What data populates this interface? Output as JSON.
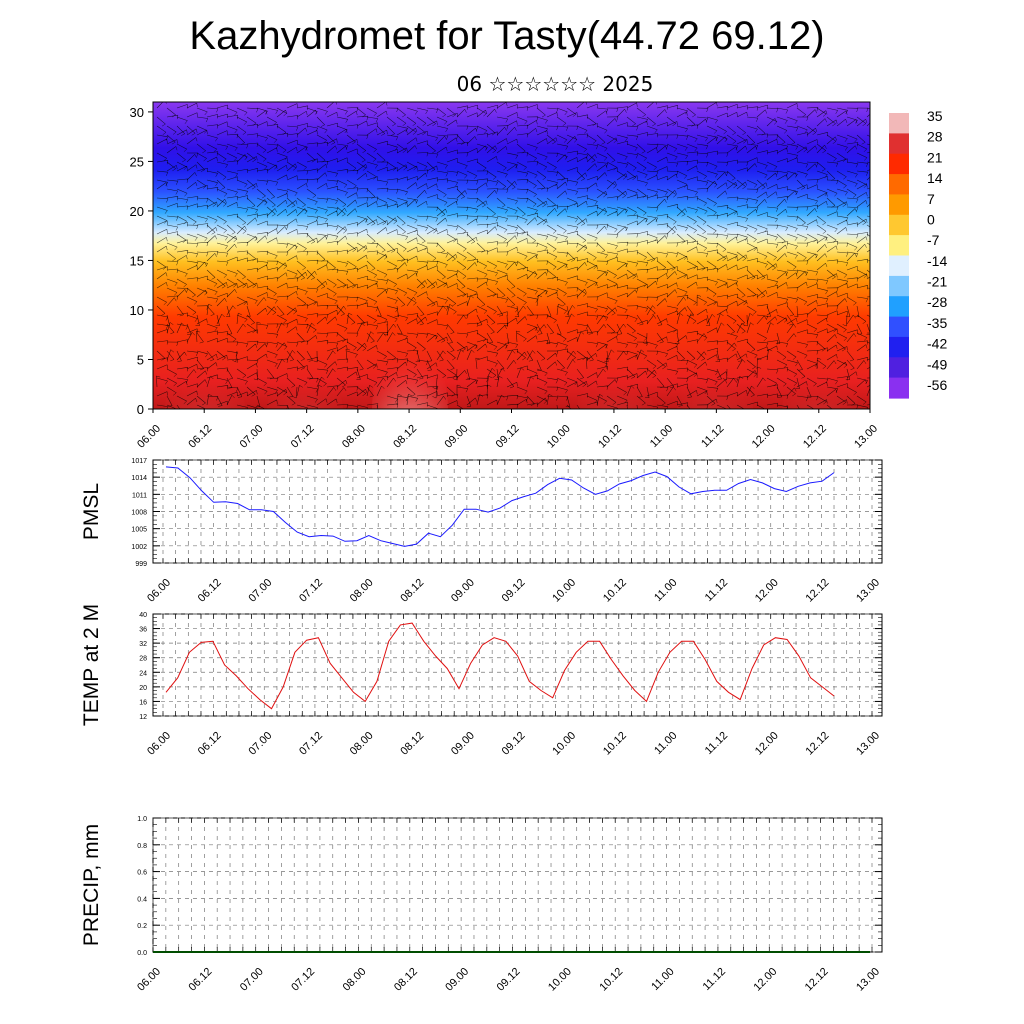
{
  "header": {
    "title": "Kazhydromet for Tasty(44.72 69.12)",
    "subtitle": "06 ☆☆☆☆☆☆ 2025"
  },
  "colors": {
    "pmsl_line": "#1a1aff",
    "temp_line": "#e01010",
    "precip_line": "#004d00",
    "grid": "#777777",
    "colorbar": [
      "#f2b8b8",
      "#e03030",
      "#ff2a00",
      "#ff6a00",
      "#ff9a00",
      "#ffc830",
      "#fff080",
      "#e0f0ff",
      "#7fc8ff",
      "#20a0ff",
      "#3050ff",
      "#2020f0",
      "#5020e0",
      "#8a30f0"
    ]
  },
  "chart_data": [
    {
      "type": "heatmap",
      "title": "",
      "xlabel": "",
      "ylabel": "",
      "ylim": [
        0,
        31
      ],
      "y_ticks": [
        "0",
        "5",
        "10",
        "15",
        "20",
        "25",
        "30"
      ],
      "x_ticks": [
        "06.00",
        "06.12",
        "07.00",
        "07.12",
        "08.00",
        "08.12",
        "09.00",
        "09.12",
        "10.00",
        "10.12",
        "11.00",
        "11.12",
        "12.00",
        "12.12",
        "13.00"
      ],
      "colorbar_labels": [
        "35",
        "28",
        "21",
        "14",
        "7",
        "0",
        "-7",
        "-14",
        "-21",
        "-28",
        "-35",
        "-42",
        "-49",
        "-56"
      ],
      "overlay": "wind barbs"
    },
    {
      "type": "line",
      "ylabel": "PMSL",
      "ylim": [
        999,
        1017
      ],
      "y_ticks": [
        "999",
        "1002",
        "1005",
        "1008",
        "1011",
        "1014",
        "1017"
      ],
      "x_ticks": [
        "06.00",
        "06.12",
        "07.00",
        "07.12",
        "08.00",
        "08.12",
        "09.00",
        "09.12",
        "10.00",
        "10.12",
        "11.00",
        "11.12",
        "12.00",
        "12.12",
        "13.00"
      ],
      "series": [
        {
          "values": [
            1015.8,
            1015.6,
            1013.9,
            1011.6,
            1009.6,
            1009.7,
            1009.4,
            1008.3,
            1008.3,
            1008.0,
            1006.1,
            1004.4,
            1003.6,
            1003.8,
            1003.7,
            1002.8,
            1002.9,
            1003.8,
            1002.9,
            1002.4,
            1001.9,
            1002.3,
            1004.2,
            1003.6,
            1005.6,
            1008.4,
            1008.4,
            1007.9,
            1008.6,
            1009.9,
            1010.6,
            1011.2,
            1012.7,
            1013.8,
            1013.5,
            1012.1,
            1011.0,
            1011.6,
            1012.8,
            1013.4,
            1014.3,
            1014.9,
            1014.1,
            1012.3,
            1011.1,
            1011.5,
            1011.7,
            1011.7,
            1012.9,
            1013.6,
            1013.0,
            1012.0,
            1011.5,
            1012.4,
            1013.0,
            1013.3,
            1014.8
          ]
        }
      ]
    },
    {
      "type": "line",
      "ylabel": "TEMP at 2 M",
      "ylim": [
        12,
        40
      ],
      "y_ticks": [
        "12",
        "16",
        "20",
        "24",
        "28",
        "32",
        "36",
        "40"
      ],
      "x_ticks": [
        "06.00",
        "06.12",
        "07.00",
        "07.12",
        "08.00",
        "08.12",
        "09.00",
        "09.12",
        "10.00",
        "10.12",
        "11.00",
        "11.12",
        "12.00",
        "12.12",
        "13.00"
      ],
      "series": [
        {
          "values": [
            18.5,
            22.5,
            29.5,
            32.2,
            32.5,
            26.0,
            23.0,
            19.5,
            16.5,
            14.0,
            20.0,
            29.5,
            32.8,
            33.5,
            26.5,
            22.5,
            18.5,
            16.0,
            21.5,
            32.5,
            37.0,
            37.5,
            32.5,
            28.5,
            25.0,
            19.5,
            26.5,
            31.5,
            33.5,
            32.5,
            28.5,
            21.5,
            19.0,
            17.0,
            24.5,
            29.5,
            32.5,
            32.5,
            27.5,
            23.0,
            19.0,
            16.0,
            24.0,
            29.5,
            32.5,
            32.5,
            27.5,
            21.5,
            18.5,
            16.5,
            25.0,
            31.5,
            33.5,
            33.0,
            28.5,
            22.5,
            20.0,
            17.5
          ]
        }
      ]
    },
    {
      "type": "line",
      "ylabel": "PRECIP, mm",
      "ylim": [
        0,
        1.0
      ],
      "y_ticks": [
        "0.0",
        "0.2",
        "0.4",
        "0.6",
        "0.8",
        "1.0"
      ],
      "x_ticks": [
        "06.00",
        "06.12",
        "07.00",
        "07.12",
        "08.00",
        "08.12",
        "09.00",
        "09.12",
        "10.00",
        "10.12",
        "11.00",
        "11.12",
        "12.00",
        "12.12",
        "13.00"
      ],
      "series": [
        {
          "values": [
            0,
            0,
            0,
            0,
            0,
            0,
            0,
            0,
            0,
            0,
            0,
            0,
            0,
            0,
            0,
            0,
            0,
            0,
            0,
            0,
            0,
            0,
            0,
            0,
            0,
            0,
            0,
            0,
            0,
            0,
            0,
            0,
            0,
            0,
            0,
            0,
            0,
            0,
            0,
            0,
            0,
            0,
            0,
            0,
            0,
            0,
            0,
            0,
            0,
            0,
            0,
            0,
            0,
            0,
            0,
            0,
            0
          ]
        }
      ]
    }
  ]
}
